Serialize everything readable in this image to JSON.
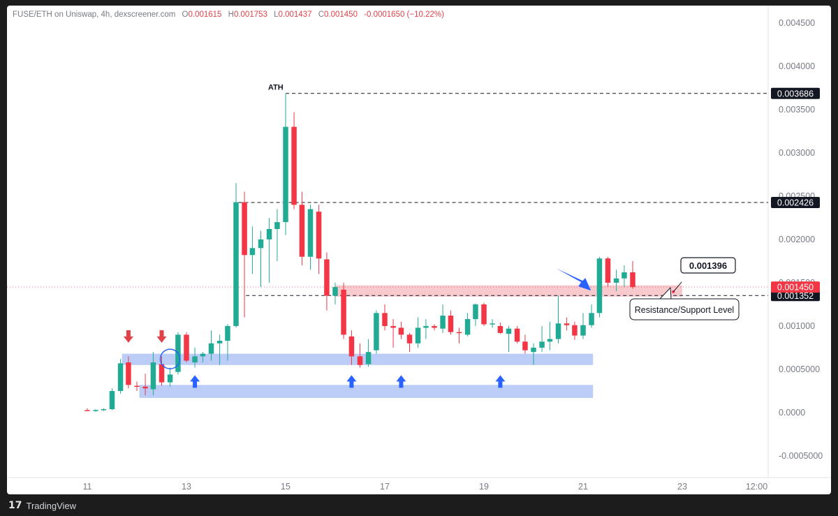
{
  "header": {
    "symbol": "FUSE/ETH on Uniswap, 4h, dexscreener.com",
    "o_label": "O",
    "o_value": "0.001615",
    "h_label": "H",
    "h_value": "0.001753",
    "l_label": "L",
    "l_value": "0.001437",
    "c_label": "C",
    "c_value": "0.001450",
    "change": "-0.0001650 (−10.22%)"
  },
  "footer": {
    "brand": "TradingView",
    "logo": "17"
  },
  "colors": {
    "up": "#22ab94",
    "down": "#f23645",
    "support_zone": "#b7c9f7",
    "resistance_zone": "#f7c4c9",
    "arrow_blue": "#2962ff",
    "arrow_red": "#e0424a"
  },
  "chart_data": {
    "type": "candlestick",
    "title": "FUSE/ETH on Uniswap, 4h, dexscreener.com",
    "ylim": [
      -0.00075,
      0.0047
    ],
    "y_ticks": [
      "0.004500",
      "0.004000",
      "0.003500",
      "0.003000",
      "0.002500",
      "0.002000",
      "0.001500",
      "0.001000",
      "0.0005000",
      "0.0000",
      "-0.0005000"
    ],
    "y_tick_values": [
      0.0045,
      0.004,
      0.0035,
      0.003,
      0.0025,
      0.002,
      0.0015,
      0.001,
      0.0005,
      0,
      -0.0005
    ],
    "x_ticks": [
      "11",
      "13",
      "15",
      "17",
      "19",
      "21",
      "23",
      "12:00"
    ],
    "x_tick_values": [
      11,
      13,
      15,
      17,
      19,
      21,
      23,
      24.5
    ],
    "candles": [
      {
        "t": 11.0,
        "o": 3e-05,
        "h": 5e-05,
        "l": 2e-05,
        "c": 2e-05
      },
      {
        "t": 11.17,
        "o": 2e-05,
        "h": 4e-05,
        "l": 1e-05,
        "c": 3e-05
      },
      {
        "t": 11.33,
        "o": 3e-05,
        "h": 5e-05,
        "l": 2e-05,
        "c": 4e-05
      },
      {
        "t": 11.5,
        "o": 4e-05,
        "h": 0.00028,
        "l": 3e-05,
        "c": 0.00025
      },
      {
        "t": 11.67,
        "o": 0.00025,
        "h": 0.00062,
        "l": 0.00022,
        "c": 0.00057
      },
      {
        "t": 11.83,
        "o": 0.00058,
        "h": 0.00065,
        "l": 0.00028,
        "c": 0.00032
      },
      {
        "t": 12.0,
        "o": 0.00031,
        "h": 0.00036,
        "l": 0.00025,
        "c": 0.0003
      },
      {
        "t": 12.17,
        "o": 0.0003,
        "h": 0.00045,
        "l": 0.0002,
        "c": 0.00028
      },
      {
        "t": 12.33,
        "o": 0.00027,
        "h": 0.0007,
        "l": 0.0002,
        "c": 0.00058
      },
      {
        "t": 12.5,
        "o": 0.00056,
        "h": 0.00065,
        "l": 0.00031,
        "c": 0.00035
      },
      {
        "t": 12.67,
        "o": 0.00035,
        "h": 0.00052,
        "l": 0.0003,
        "c": 0.00044
      },
      {
        "t": 12.83,
        "o": 0.00047,
        "h": 0.00093,
        "l": 0.00044,
        "c": 0.0009
      },
      {
        "t": 13.0,
        "o": 0.0009,
        "h": 0.00093,
        "l": 0.00058,
        "c": 0.0006
      },
      {
        "t": 13.17,
        "o": 0.00058,
        "h": 0.00075,
        "l": 0.00052,
        "c": 0.00065
      },
      {
        "t": 13.33,
        "o": 0.00065,
        "h": 0.0007,
        "l": 0.00058,
        "c": 0.00068
      },
      {
        "t": 13.5,
        "o": 0.00068,
        "h": 0.00095,
        "l": 0.0006,
        "c": 0.0008
      },
      {
        "t": 13.67,
        "o": 0.0008,
        "h": 0.0009,
        "l": 0.00055,
        "c": 0.00083
      },
      {
        "t": 13.83,
        "o": 0.00083,
        "h": 0.00102,
        "l": 0.0006,
        "c": 0.001
      },
      {
        "t": 14.0,
        "o": 0.001,
        "h": 0.00265,
        "l": 0.00098,
        "c": 0.00243
      },
      {
        "t": 14.17,
        "o": 0.00243,
        "h": 0.00255,
        "l": 0.0011,
        "c": 0.00182
      },
      {
        "t": 14.33,
        "o": 0.00182,
        "h": 0.00215,
        "l": 0.0016,
        "c": 0.0019
      },
      {
        "t": 14.5,
        "o": 0.0019,
        "h": 0.0021,
        "l": 0.00145,
        "c": 0.002
      },
      {
        "t": 14.67,
        "o": 0.002,
        "h": 0.00225,
        "l": 0.0015,
        "c": 0.00212
      },
      {
        "t": 14.83,
        "o": 0.00212,
        "h": 0.00235,
        "l": 0.00175,
        "c": 0.0022
      },
      {
        "t": 15.0,
        "o": 0.0022,
        "h": 0.00368,
        "l": 0.00205,
        "c": 0.0033
      },
      {
        "t": 15.17,
        "o": 0.0033,
        "h": 0.00347,
        "l": 0.00235,
        "c": 0.0024
      },
      {
        "t": 15.33,
        "o": 0.0024,
        "h": 0.00255,
        "l": 0.0017,
        "c": 0.0018
      },
      {
        "t": 15.5,
        "o": 0.0018,
        "h": 0.0024,
        "l": 0.00165,
        "c": 0.00235
      },
      {
        "t": 15.67,
        "o": 0.00232,
        "h": 0.0024,
        "l": 0.0016,
        "c": 0.00178
      },
      {
        "t": 15.83,
        "o": 0.00177,
        "h": 0.00185,
        "l": 0.00118,
        "c": 0.00135
      },
      {
        "t": 16.0,
        "o": 0.00135,
        "h": 0.0015,
        "l": 0.00125,
        "c": 0.00145
      },
      {
        "t": 16.17,
        "o": 0.00142,
        "h": 0.0015,
        "l": 0.00085,
        "c": 0.0009
      },
      {
        "t": 16.33,
        "o": 0.00088,
        "h": 0.00095,
        "l": 0.00055,
        "c": 0.00065
      },
      {
        "t": 16.5,
        "o": 0.00065,
        "h": 0.0008,
        "l": 0.00052,
        "c": 0.00055
      },
      {
        "t": 16.67,
        "o": 0.00056,
        "h": 0.00085,
        "l": 0.00053,
        "c": 0.0007
      },
      {
        "t": 16.83,
        "o": 0.00072,
        "h": 0.00118,
        "l": 0.00068,
        "c": 0.00115
      },
      {
        "t": 17.0,
        "o": 0.00115,
        "h": 0.00125,
        "l": 0.00095,
        "c": 0.001
      },
      {
        "t": 17.17,
        "o": 0.001,
        "h": 0.00108,
        "l": 0.00075,
        "c": 0.00098
      },
      {
        "t": 17.33,
        "o": 0.00098,
        "h": 0.00105,
        "l": 0.00085,
        "c": 0.0009
      },
      {
        "t": 17.5,
        "o": 0.0009,
        "h": 0.00092,
        "l": 0.0007,
        "c": 0.0008
      },
      {
        "t": 17.67,
        "o": 0.0008,
        "h": 0.0011,
        "l": 0.00075,
        "c": 0.00098
      },
      {
        "t": 17.83,
        "o": 0.00098,
        "h": 0.00108,
        "l": 0.00085,
        "c": 0.001
      },
      {
        "t": 18.0,
        "o": 0.001,
        "h": 0.00102,
        "l": 0.00095,
        "c": 0.00098
      },
      {
        "t": 18.17,
        "o": 0.00097,
        "h": 0.00125,
        "l": 0.00092,
        "c": 0.00112
      },
      {
        "t": 18.33,
        "o": 0.00112,
        "h": 0.00118,
        "l": 0.0009,
        "c": 0.00093
      },
      {
        "t": 18.5,
        "o": 0.00093,
        "h": 0.00098,
        "l": 0.0008,
        "c": 0.00092
      },
      {
        "t": 18.67,
        "o": 0.0009,
        "h": 0.00115,
        "l": 0.00088,
        "c": 0.00108
      },
      {
        "t": 18.83,
        "o": 0.00108,
        "h": 0.00126,
        "l": 0.001,
        "c": 0.00125
      },
      {
        "t": 19.0,
        "o": 0.00125,
        "h": 0.00127,
        "l": 0.001,
        "c": 0.00102
      },
      {
        "t": 19.17,
        "o": 0.00102,
        "h": 0.00108,
        "l": 0.00098,
        "c": 0.00103
      },
      {
        "t": 19.33,
        "o": 0.001,
        "h": 0.00104,
        "l": 0.00091,
        "c": 0.00092
      },
      {
        "t": 19.5,
        "o": 0.00091,
        "h": 0.001,
        "l": 0.0007,
        "c": 0.00097
      },
      {
        "t": 19.67,
        "o": 0.00097,
        "h": 0.001,
        "l": 0.0008,
        "c": 0.00082
      },
      {
        "t": 19.83,
        "o": 0.00082,
        "h": 0.0009,
        "l": 0.00068,
        "c": 0.00072
      },
      {
        "t": 20.0,
        "o": 0.0007,
        "h": 0.0008,
        "l": 0.00055,
        "c": 0.00075
      },
      {
        "t": 20.17,
        "o": 0.00075,
        "h": 0.001,
        "l": 0.0007,
        "c": 0.00082
      },
      {
        "t": 20.33,
        "o": 0.00082,
        "h": 0.00105,
        "l": 0.00072,
        "c": 0.00085
      },
      {
        "t": 20.5,
        "o": 0.00085,
        "h": 0.00135,
        "l": 0.0008,
        "c": 0.00103
      },
      {
        "t": 20.67,
        "o": 0.00103,
        "h": 0.0011,
        "l": 0.00095,
        "c": 0.00101
      },
      {
        "t": 20.83,
        "o": 0.00101,
        "h": 0.00105,
        "l": 0.00084,
        "c": 0.00089
      },
      {
        "t": 21.0,
        "o": 0.00089,
        "h": 0.00115,
        "l": 0.00085,
        "c": 0.00101
      },
      {
        "t": 21.17,
        "o": 0.00101,
        "h": 0.00125,
        "l": 0.00098,
        "c": 0.00115
      },
      {
        "t": 21.33,
        "o": 0.00115,
        "h": 0.0018,
        "l": 0.0011,
        "c": 0.00178
      },
      {
        "t": 21.5,
        "o": 0.00178,
        "h": 0.0018,
        "l": 0.00145,
        "c": 0.0015
      },
      {
        "t": 21.67,
        "o": 0.0015,
        "h": 0.00165,
        "l": 0.0014,
        "c": 0.00155
      },
      {
        "t": 21.83,
        "o": 0.00155,
        "h": 0.0017,
        "l": 0.00145,
        "c": 0.00162
      },
      {
        "t": 22.0,
        "o": 0.00162,
        "h": 0.00175,
        "l": 0.00143,
        "c": 0.00145
      }
    ],
    "horizontal_lines": [
      {
        "value": 0.003686,
        "label": "0.003686",
        "style": "dashed"
      },
      {
        "value": 0.002426,
        "label": "0.002426",
        "style": "dashed"
      },
      {
        "value": 0.001352,
        "label": "0.001352",
        "style": "dashed"
      }
    ],
    "current_price": {
      "value": 0.00145,
      "label": "0.001450"
    },
    "zones": [
      {
        "kind": "resistance",
        "from": 0.00134,
        "to": 0.00147,
        "x_from": 16.0,
        "x_to": 23.0
      },
      {
        "kind": "support",
        "from": 0.00055,
        "to": 0.00068,
        "x_from": 11.7,
        "x_to": 21.2
      },
      {
        "kind": "support",
        "from": 0.00017,
        "to": 0.00032,
        "x_from": 12.05,
        "x_to": 21.2
      }
    ],
    "annotations": {
      "ath_label": "ATH",
      "callout_value": "0.001396",
      "level_label": "Resistance/Support Level"
    },
    "up_arrows": [
      13.17,
      16.33,
      17.33,
      19.33
    ],
    "down_arrows": [
      11.83,
      12.5
    ],
    "circle_at": 12.67,
    "pointer_arrow_to": 21.2
  }
}
